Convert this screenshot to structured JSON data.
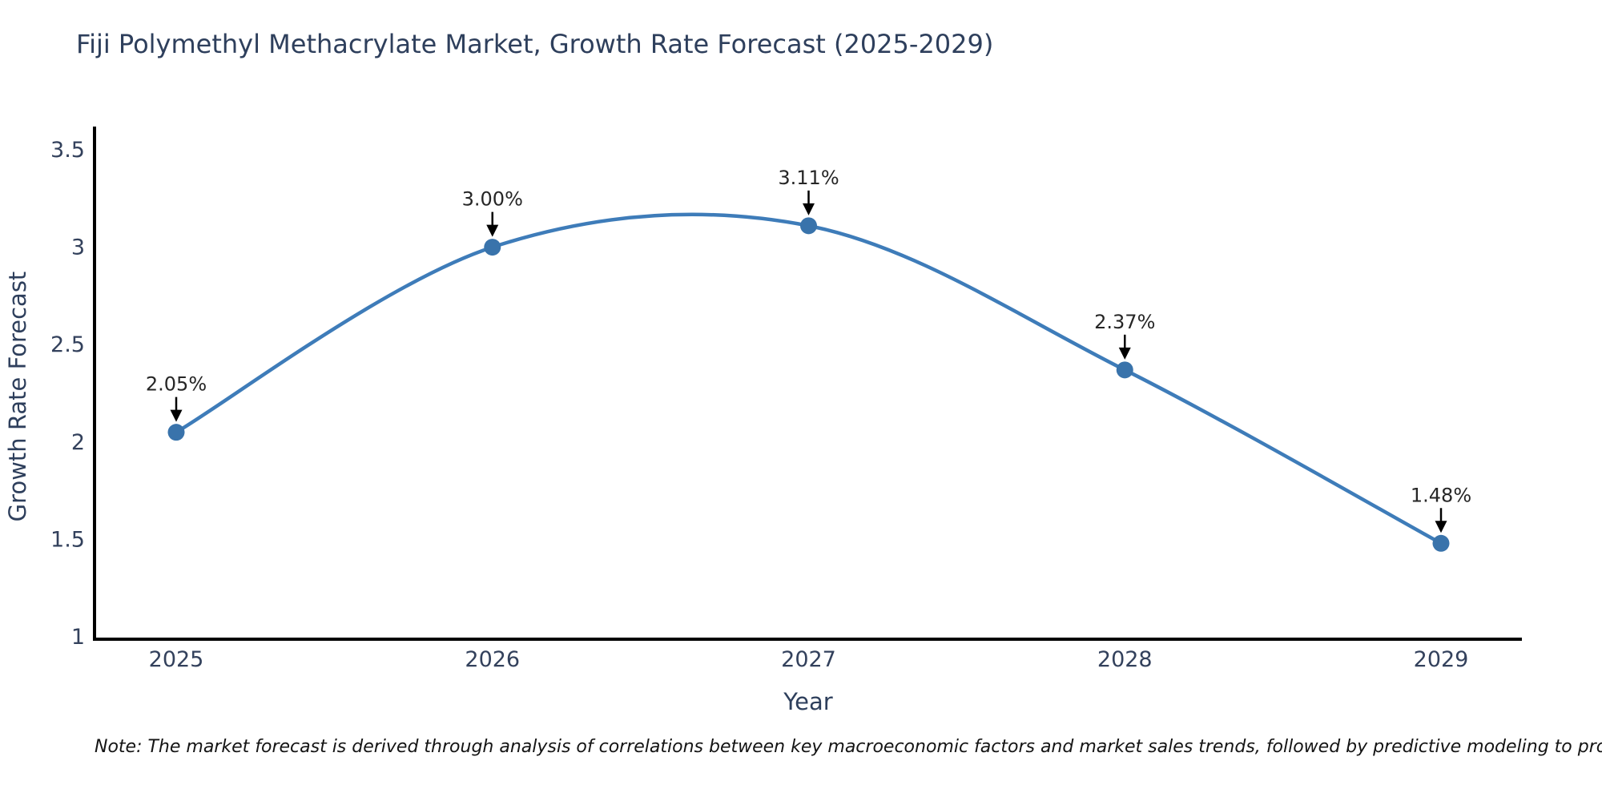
{
  "title": "Fiji Polymethyl Methacrylate Market, Growth Rate Forecast (2025-2029)",
  "note": "Note: The market forecast is derived through analysis of correlations between key macroeconomic factors and market sales trends, followed by predictive modeling to project future sales",
  "chart_data": {
    "type": "line",
    "title": "Fiji Polymethyl Methacrylate Market, Growth Rate Forecast (2025-2029)",
    "x": [
      2025,
      2026,
      2027,
      2028,
      2029
    ],
    "series": [
      {
        "name": "Growth Rate Forecast",
        "values": [
          2.05,
          3.0,
          3.11,
          2.37,
          1.48
        ]
      }
    ],
    "point_labels": [
      "2.05%",
      "3.00%",
      "3.11%",
      "2.37%",
      "1.48%"
    ],
    "xlabel": "Year",
    "ylabel": "Growth Rate Forecast",
    "x_tick_labels": [
      "2025",
      "2026",
      "2027",
      "2028",
      "2029"
    ],
    "y_ticks": [
      1,
      1.5,
      2,
      2.5,
      3,
      3.5
    ],
    "y_tick_labels": [
      "1",
      "1.5",
      "2",
      "2.5",
      "3",
      "3.5"
    ],
    "ylim": [
      1,
      3.6
    ],
    "grid": false,
    "legend": "none",
    "smooth": true,
    "marker": "circle",
    "annotation_arrows": true,
    "colors": {
      "line": "#3e7cb9",
      "marker": "#3973ab",
      "annotation_text": "#262626",
      "arrow": "#000000",
      "axis_spine": "#000000",
      "tick_text": "#33415c",
      "axis_label_text": "#2e3f5c",
      "title_text": "#2e3f5c",
      "background": "#ffffff"
    }
  }
}
